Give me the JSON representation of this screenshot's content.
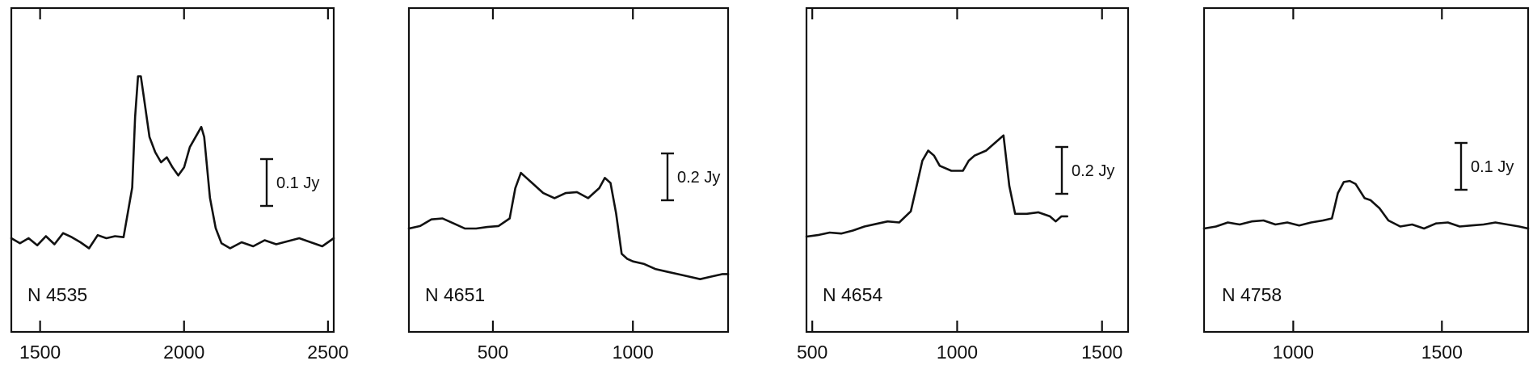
{
  "chart_data": [
    {
      "type": "line",
      "label": "N 4535",
      "scale_bar": "0.1 Jy",
      "scale_bar_value": 0.1,
      "xlim": [
        1400,
        2520
      ],
      "ylim": [
        -0.04,
        0.28
      ],
      "xticks": [
        1500,
        2000,
        2500
      ],
      "tick_labels": [
        "1500",
        "2000",
        "2500"
      ],
      "x": [
        1400,
        1430,
        1460,
        1490,
        1520,
        1550,
        1580,
        1610,
        1640,
        1670,
        1700,
        1730,
        1760,
        1790,
        1820,
        1830,
        1840,
        1850,
        1860,
        1880,
        1900,
        1920,
        1940,
        1960,
        1980,
        2000,
        2020,
        2040,
        2060,
        2070,
        2090,
        2110,
        2130,
        2160,
        2200,
        2240,
        2280,
        2320,
        2360,
        2400,
        2440,
        2480,
        2520
      ],
      "y": [
        0.0,
        -0.005,
        0.0,
        -0.007,
        0.002,
        -0.006,
        0.005,
        0.001,
        -0.004,
        -0.01,
        0.003,
        0.0,
        0.002,
        0.001,
        0.05,
        0.12,
        0.16,
        0.16,
        0.14,
        0.1,
        0.085,
        0.075,
        0.08,
        0.07,
        0.062,
        0.07,
        0.09,
        0.1,
        0.11,
        0.1,
        0.04,
        0.01,
        -0.005,
        -0.01,
        -0.004,
        -0.008,
        -0.002,
        -0.006,
        -0.003,
        0.0,
        -0.004,
        -0.008,
        0.0
      ]
    },
    {
      "type": "line",
      "label": "N 4651",
      "scale_bar": "0.2 Jy",
      "scale_bar_value": 0.2,
      "xlim": [
        200,
        1340
      ],
      "ylim": [
        -0.12,
        0.52
      ],
      "xticks": [
        500,
        1000
      ],
      "tick_labels": [
        "500",
        "1000"
      ],
      "x": [
        200,
        240,
        280,
        320,
        360,
        400,
        440,
        480,
        520,
        560,
        580,
        600,
        620,
        640,
        680,
        720,
        760,
        800,
        840,
        880,
        900,
        920,
        940,
        960,
        980,
        1000,
        1040,
        1080,
        1120,
        1160,
        1200,
        1240,
        1280,
        1320,
        1340
      ],
      "y": [
        0.0,
        0.005,
        0.018,
        0.02,
        0.01,
        0.0,
        0.0,
        0.003,
        0.005,
        0.02,
        0.08,
        0.11,
        0.1,
        0.09,
        0.07,
        0.06,
        0.07,
        0.072,
        0.06,
        0.08,
        0.1,
        0.09,
        0.03,
        -0.05,
        -0.06,
        -0.065,
        -0.07,
        -0.08,
        -0.085,
        -0.09,
        -0.095,
        -0.1,
        -0.095,
        -0.09,
        -0.09
      ]
    },
    {
      "type": "line",
      "label": "N 4654",
      "scale_bar": "0.2 Jy",
      "scale_bar_value": 0.2,
      "xlim": [
        480,
        1590
      ],
      "ylim": [
        -0.06,
        0.58
      ],
      "xticks": [
        500,
        1000,
        1500
      ],
      "tick_labels": [
        "500",
        "1000",
        "1500"
      ],
      "x": [
        480,
        520,
        560,
        600,
        640,
        680,
        720,
        760,
        800,
        840,
        860,
        880,
        900,
        920,
        940,
        980,
        1020,
        1040,
        1060,
        1100,
        1140,
        1160,
        1180,
        1200,
        1240,
        1280,
        1320,
        1340,
        1360,
        1380
      ],
      "y": [
        0.0,
        0.003,
        0.008,
        0.006,
        0.012,
        0.02,
        0.025,
        0.03,
        0.028,
        0.05,
        0.1,
        0.15,
        0.17,
        0.16,
        0.14,
        0.13,
        0.13,
        0.15,
        0.16,
        0.17,
        0.19,
        0.2,
        0.1,
        0.045,
        0.045,
        0.048,
        0.04,
        0.03,
        0.04,
        0.04
      ]
    },
    {
      "type": "line",
      "label": "N 4758",
      "scale_bar": "0.1 Jy",
      "scale_bar_value": 0.1,
      "xlim": [
        700,
        1790
      ],
      "ylim": [
        -0.035,
        0.285
      ],
      "xticks": [
        1000,
        1500
      ],
      "tick_labels": [
        "1000",
        "1500"
      ],
      "x": [
        700,
        740,
        780,
        820,
        860,
        900,
        940,
        980,
        1020,
        1060,
        1100,
        1130,
        1150,
        1170,
        1190,
        1210,
        1240,
        1260,
        1290,
        1320,
        1360,
        1400,
        1440,
        1480,
        1520,
        1560,
        1600,
        1640,
        1680,
        1720,
        1760,
        1790
      ],
      "y": [
        0.0,
        0.002,
        0.006,
        0.004,
        0.007,
        0.008,
        0.004,
        0.006,
        0.003,
        0.006,
        0.008,
        0.01,
        0.035,
        0.046,
        0.047,
        0.044,
        0.03,
        0.028,
        0.02,
        0.008,
        0.002,
        0.004,
        0.0,
        0.005,
        0.006,
        0.002,
        0.003,
        0.004,
        0.006,
        0.004,
        0.002,
        0.0
      ]
    }
  ]
}
